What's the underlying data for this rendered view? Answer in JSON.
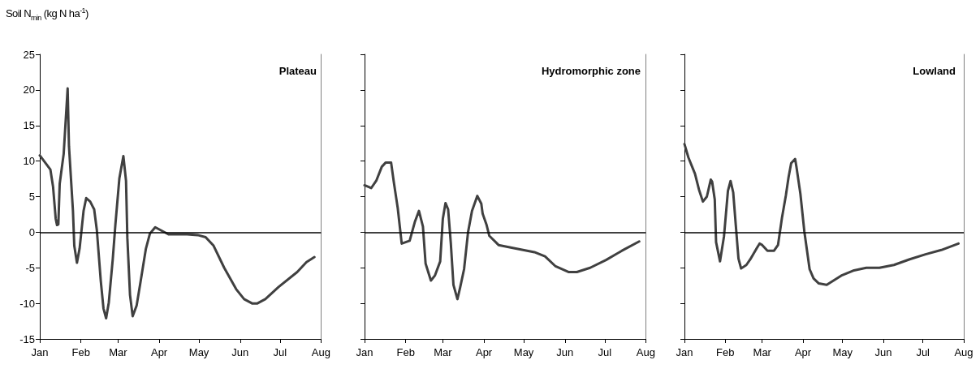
{
  "chart_data": [
    {
      "type": "line",
      "title": "Plateau",
      "ylabel": "Soil N$_{min}$ (kg N ha$^{-1}$)",
      "marker": "none",
      "line_style": "solid",
      "x": [
        "--01-01",
        "--01-09",
        "--01-11",
        "--01-13",
        "--01-14",
        "--01-15",
        "--01-16",
        "--01-19",
        "--01-22",
        "--01-23",
        "--01-26",
        "--01-27",
        "--01-29",
        "--01-31",
        "--02-03",
        "--02-05",
        "--02-08",
        "--02-11",
        "--02-13",
        "--02-16",
        "--02-18",
        "--02-20",
        "--02-22",
        "--02-25",
        "--02-27",
        "--03-02",
        "--03-05",
        "--03-07",
        "--03-08",
        "--03-10",
        "--03-12",
        "--03-15",
        "--03-18",
        "--03-22",
        "--03-25",
        "--03-29",
        "--04-02",
        "--04-08",
        "--04-22",
        "--04-30",
        "--05-06",
        "--05-12",
        "--05-20",
        "--05-29",
        "--06-04",
        "--06-10",
        "--06-14",
        "--06-20",
        "--06-30",
        "--07-14",
        "--07-21",
        "--07-27"
      ],
      "series": [
        {
          "color": "#404040",
          "values": [
            10.8,
            8.8,
            6.4,
            1.9,
            1.0,
            1.1,
            6.8,
            11,
            20.2,
            12.1,
            3.0,
            -1.9,
            -4.3,
            -2.3,
            3.0,
            4.8,
            4.3,
            3.2,
            0.3,
            -6.9,
            -10.7,
            -12.1,
            -9.9,
            -3.8,
            1.1,
            7.6,
            10.7,
            7.2,
            -0.8,
            -8.8,
            -11.8,
            -10.3,
            -6.9,
            -2.3,
            -0.2,
            0.7,
            0.3,
            -0.3,
            -0.3,
            -0.4,
            -0.7,
            -1.9,
            -5.0,
            -8.0,
            -9.4,
            -10.0,
            -10.0,
            -9.4,
            -7.7,
            -5.6,
            -4.2,
            -3.5
          ]
        }
      ],
      "xlim": [
        "--01-01",
        "--08-01"
      ],
      "xticks": [
        {
          "value": "--01-01",
          "label": "Jan"
        },
        {
          "value": "--02-01",
          "label": "Feb"
        },
        {
          "value": "--03-01",
          "label": "Mar"
        },
        {
          "value": "--04-01",
          "label": "Apr"
        },
        {
          "value": "--05-01",
          "label": "May"
        },
        {
          "value": "--06-01",
          "label": "Jun"
        },
        {
          "value": "--07-01",
          "label": "Jul"
        },
        {
          "value": "--08-01",
          "label": "Aug"
        }
      ],
      "ylim": [
        -15,
        25
      ],
      "yticks": [
        -15,
        -10,
        -5,
        0,
        5,
        10,
        15,
        20,
        25
      ],
      "ref_lines": [
        {
          "axis": "y",
          "value": 0,
          "color": "#000000"
        }
      ]
    },
    {
      "type": "line",
      "title": "Hydromorphic zone",
      "marker": "none",
      "line_style": "solid",
      "tick_labels": "x",
      "x": [
        "--01-01",
        "--01-06",
        "--01-10",
        "--01-14",
        "--01-17",
        "--01-21",
        "--01-23",
        "--01-26",
        "--01-29",
        "--02-04",
        "--02-08",
        "--02-11",
        "--02-14",
        "--02-16",
        "--02-20",
        "--02-23",
        "--02-27",
        "--03-01",
        "--03-03",
        "--03-05",
        "--03-07",
        "--03-09",
        "--03-12",
        "--03-14",
        "--03-17",
        "--03-20",
        "--03-23",
        "--03-27",
        "--03-30",
        "--03-31",
        "--04-03",
        "--04-05",
        "--04-12",
        "--04-25",
        "--05-09",
        "--05-17",
        "--05-25",
        "--06-04",
        "--06-10",
        "--06-20",
        "--07-02",
        "--07-14",
        "--07-27"
      ],
      "series": [
        {
          "color": "#404040",
          "values": [
            6.6,
            6.2,
            7.3,
            9.2,
            9.8,
            9.8,
            7.1,
            3.4,
            -1.6,
            -1.2,
            1.5,
            3.0,
            0.8,
            -4.4,
            -6.8,
            -6.1,
            -4.1,
            1.9,
            4.1,
            3.2,
            -1.5,
            -7.4,
            -9.4,
            -7.8,
            -5.2,
            0.0,
            3.0,
            5.1,
            4.0,
            2.6,
            1.0,
            -0.5,
            -1.8,
            -2.3,
            -2.8,
            -3.4,
            -4.8,
            -5.6,
            -5.6,
            -5.0,
            -3.9,
            -2.6,
            -1.3
          ]
        }
      ],
      "xlim": [
        "--01-01",
        "--08-01"
      ],
      "xticks": [
        {
          "value": "--01-01",
          "label": "Jan"
        },
        {
          "value": "--02-01",
          "label": "Feb"
        },
        {
          "value": "--03-01",
          "label": "Mar"
        },
        {
          "value": "--04-01",
          "label": "Apr"
        },
        {
          "value": "--05-01",
          "label": "May"
        },
        {
          "value": "--06-01",
          "label": "Jun"
        },
        {
          "value": "--07-01",
          "label": "Jul"
        },
        {
          "value": "--08-01",
          "label": "Aug"
        }
      ],
      "ylim": [
        -15,
        25
      ],
      "yticks": [
        -15,
        -10,
        -5,
        0,
        5,
        10,
        15,
        20,
        25
      ],
      "ref_lines": [
        {
          "axis": "y",
          "value": 0,
          "color": "#000000"
        }
      ]
    },
    {
      "type": "line",
      "title": "Lowland",
      "marker": "none",
      "line_style": "solid",
      "tick_labels": "x",
      "x": [
        "--01-01",
        "--01-04",
        "--01-09",
        "--01-12",
        "--01-15",
        "--01-18",
        "--01-21",
        "--01-22",
        "--01-24",
        "--01-25",
        "--01-28",
        "--01-31",
        "--02-03",
        "--02-05",
        "--02-07",
        "--02-09",
        "--02-11",
        "--02-13",
        "--02-17",
        "--02-20",
        "--02-25",
        "--02-27",
        "--03-01",
        "--03-05",
        "--03-10",
        "--03-13",
        "--03-16",
        "--03-19",
        "--03-21",
        "--03-23",
        "--03-26",
        "--03-27",
        "--03-30",
        "--04-02",
        "--04-06",
        "--04-09",
        "--04-13",
        "--04-19",
        "--04-30",
        "--05-09",
        "--05-19",
        "--05-29",
        "--06-09",
        "--06-21",
        "--07-03",
        "--07-15",
        "--07-28"
      ],
      "series": [
        {
          "color": "#404040",
          "values": [
            12.4,
            10.5,
            8.2,
            6.0,
            4.3,
            5.0,
            7.4,
            7.1,
            4.6,
            -1.4,
            -4.1,
            -0.6,
            5.8,
            7.2,
            5.6,
            0.9,
            -3.7,
            -5.1,
            -4.6,
            -3.8,
            -2.2,
            -1.6,
            -1.8,
            -2.6,
            -2.6,
            -1.8,
            2.0,
            5.2,
            7.7,
            9.7,
            10.3,
            9.2,
            5.4,
            0.1,
            -5.2,
            -6.5,
            -7.2,
            -7.4,
            -6.1,
            -5.4,
            -5.0,
            -5.0,
            -4.6,
            -3.8,
            -3.1,
            -2.5,
            -1.6
          ]
        }
      ],
      "xlim": [
        "--01-01",
        "--08-01"
      ],
      "xticks": [
        {
          "value": "--01-01",
          "label": "Jan"
        },
        {
          "value": "--02-01",
          "label": "Feb"
        },
        {
          "value": "--03-01",
          "label": "Mar"
        },
        {
          "value": "--04-01",
          "label": "Apr"
        },
        {
          "value": "--05-01",
          "label": "May"
        },
        {
          "value": "--06-01",
          "label": "Jun"
        },
        {
          "value": "--07-01",
          "label": "Jul"
        },
        {
          "value": "--08-01",
          "label": "Aug"
        }
      ],
      "ylim": [
        -15,
        25
      ],
      "yticks": [
        -15,
        -10,
        -5,
        0,
        5,
        10,
        15,
        20,
        25
      ],
      "ref_lines": [
        {
          "axis": "y",
          "value": 0,
          "color": "#000000"
        }
      ]
    }
  ]
}
